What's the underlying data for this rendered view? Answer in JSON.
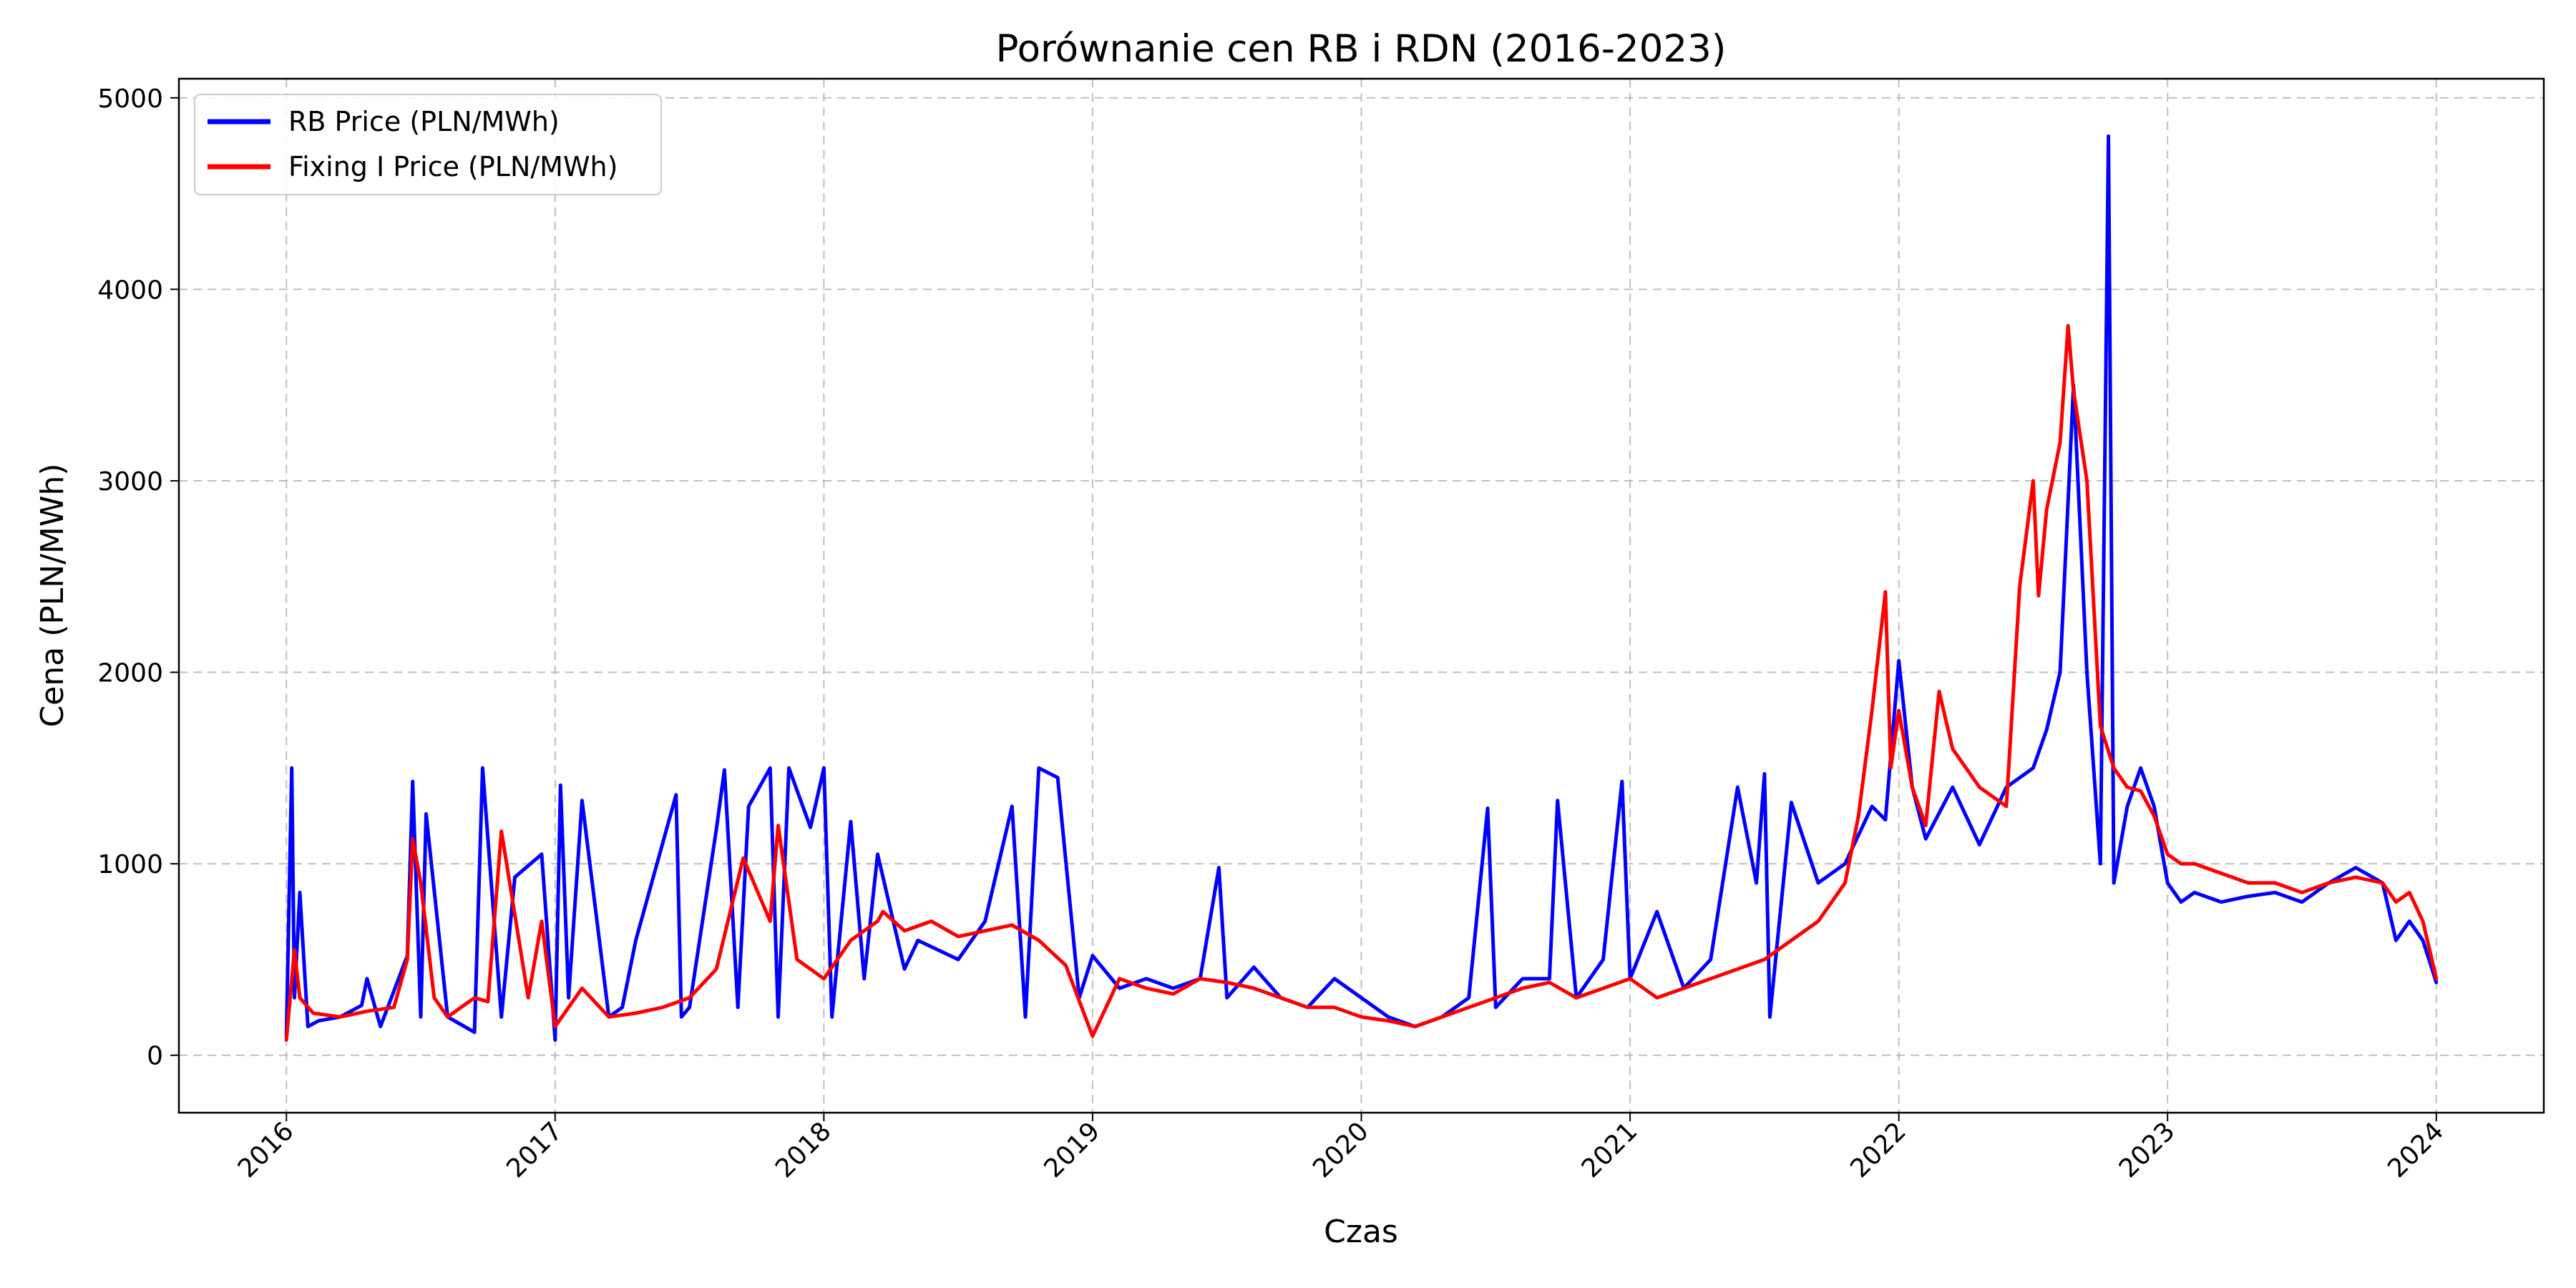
{
  "chart_data": {
    "type": "line",
    "title": "Porównanie cen RB i RDN (2016-2023)",
    "xlabel": "Czas",
    "ylabel": "Cena (PLN/MWh)",
    "xlim": [
      2015.6,
      2024.4
    ],
    "ylim": [
      -300,
      5100
    ],
    "grid": true,
    "legend_position": "top-left",
    "x_ticks": [
      2016,
      2017,
      2018,
      2019,
      2020,
      2021,
      2022,
      2023,
      2024
    ],
    "x_tick_labels": [
      "2016",
      "2017",
      "2018",
      "2019",
      "2020",
      "2021",
      "2022",
      "2023",
      "2024"
    ],
    "y_ticks": [
      0,
      1000,
      2000,
      3000,
      4000,
      5000
    ],
    "y_tick_labels": [
      "0",
      "1000",
      "2000",
      "3000",
      "4000",
      "5000"
    ],
    "series": [
      {
        "name": "RB Price (PLN/MWh)",
        "color": "#0000ff",
        "x": [
          2016.0,
          2016.02,
          2016.03,
          2016.05,
          2016.08,
          2016.12,
          2016.2,
          2016.28,
          2016.3,
          2016.35,
          2016.45,
          2016.47,
          2016.5,
          2016.52,
          2016.6,
          2016.7,
          2016.73,
          2016.8,
          2016.85,
          2016.95,
          2017.0,
          2017.02,
          2017.05,
          2017.1,
          2017.2,
          2017.25,
          2017.3,
          2017.45,
          2017.47,
          2017.5,
          2017.6,
          2017.63,
          2017.68,
          2017.72,
          2017.8,
          2017.83,
          2017.87,
          2017.95,
          2018.0,
          2018.03,
          2018.1,
          2018.15,
          2018.2,
          2018.3,
          2018.35,
          2018.5,
          2018.6,
          2018.7,
          2018.75,
          2018.8,
          2018.87,
          2018.95,
          2019.0,
          2019.1,
          2019.2,
          2019.3,
          2019.4,
          2019.47,
          2019.5,
          2019.6,
          2019.7,
          2019.8,
          2019.9,
          2020.0,
          2020.1,
          2020.2,
          2020.3,
          2020.4,
          2020.47,
          2020.5,
          2020.6,
          2020.7,
          2020.73,
          2020.8,
          2020.9,
          2020.97,
          2021.0,
          2021.1,
          2021.2,
          2021.3,
          2021.4,
          2021.47,
          2021.5,
          2021.52,
          2021.6,
          2021.7,
          2021.8,
          2021.9,
          2021.95,
          2022.0,
          2022.05,
          2022.1,
          2022.2,
          2022.3,
          2022.4,
          2022.5,
          2022.55,
          2022.6,
          2022.65,
          2022.7,
          2022.75,
          2022.78,
          2022.8,
          2022.85,
          2022.9,
          2022.95,
          2023.0,
          2023.05,
          2023.1,
          2023.2,
          2023.3,
          2023.4,
          2023.5,
          2023.6,
          2023.7,
          2023.8,
          2023.85,
          2023.9,
          2023.95,
          2024.0
        ],
        "y": [
          100,
          1500,
          300,
          850,
          150,
          180,
          200,
          260,
          400,
          150,
          520,
          1430,
          200,
          1260,
          200,
          120,
          1500,
          200,
          930,
          1050,
          80,
          1410,
          300,
          1330,
          200,
          250,
          600,
          1360,
          200,
          250,
          1180,
          1490,
          250,
          1300,
          1500,
          200,
          1500,
          1190,
          1500,
          200,
          1220,
          400,
          1050,
          450,
          600,
          500,
          700,
          1300,
          200,
          1500,
          1450,
          300,
          520,
          350,
          400,
          350,
          400,
          980,
          300,
          460,
          300,
          250,
          400,
          300,
          200,
          150,
          200,
          300,
          1290,
          250,
          400,
          400,
          1330,
          300,
          500,
          1430,
          400,
          750,
          350,
          500,
          1400,
          900,
          1470,
          200,
          1320,
          900,
          1000,
          1300,
          1230,
          2060,
          1400,
          1130,
          1400,
          1100,
          1400,
          1500,
          1700,
          2000,
          3500,
          2000,
          1000,
          4800,
          900,
          1300,
          1500,
          1300,
          900,
          800,
          850,
          800,
          830,
          850,
          800,
          900,
          980,
          900,
          600,
          700,
          600,
          380
        ]
      },
      {
        "name": "Fixing I Price (PLN/MWh)",
        "color": "#ff0000",
        "x": [
          2016.0,
          2016.03,
          2016.05,
          2016.1,
          2016.2,
          2016.3,
          2016.4,
          2016.45,
          2016.47,
          2016.5,
          2016.55,
          2016.6,
          2016.7,
          2016.75,
          2016.8,
          2016.9,
          2016.95,
          2017.0,
          2017.1,
          2017.2,
          2017.3,
          2017.4,
          2017.5,
          2017.6,
          2017.7,
          2017.8,
          2017.83,
          2017.9,
          2018.0,
          2018.1,
          2018.2,
          2018.22,
          2018.3,
          2018.4,
          2018.5,
          2018.6,
          2018.7,
          2018.8,
          2018.9,
          2019.0,
          2019.1,
          2019.2,
          2019.3,
          2019.4,
          2019.5,
          2019.6,
          2019.7,
          2019.8,
          2019.9,
          2020.0,
          2020.1,
          2020.2,
          2020.3,
          2020.4,
          2020.5,
          2020.6,
          2020.7,
          2020.8,
          2020.9,
          2021.0,
          2021.1,
          2021.2,
          2021.3,
          2021.4,
          2021.5,
          2021.6,
          2021.7,
          2021.8,
          2021.85,
          2021.9,
          2021.95,
          2021.97,
          2022.0,
          2022.05,
          2022.1,
          2022.15,
          2022.2,
          2022.3,
          2022.4,
          2022.45,
          2022.5,
          2022.52,
          2022.55,
          2022.6,
          2022.63,
          2022.65,
          2022.7,
          2022.75,
          2022.8,
          2022.85,
          2022.9,
          2022.95,
          2023.0,
          2023.05,
          2023.1,
          2023.2,
          2023.3,
          2023.4,
          2023.5,
          2023.6,
          2023.7,
          2023.8,
          2023.85,
          2023.9,
          2023.95,
          2024.0
        ],
        "y": [
          80,
          550,
          300,
          220,
          200,
          230,
          250,
          500,
          1130,
          900,
          300,
          200,
          300,
          280,
          1170,
          300,
          700,
          150,
          350,
          200,
          220,
          250,
          300,
          450,
          1030,
          700,
          1200,
          500,
          400,
          600,
          700,
          750,
          650,
          700,
          620,
          650,
          680,
          600,
          470,
          100,
          400,
          350,
          320,
          400,
          380,
          350,
          300,
          250,
          250,
          200,
          180,
          150,
          200,
          250,
          300,
          350,
          380,
          300,
          350,
          400,
          300,
          350,
          400,
          450,
          500,
          600,
          700,
          900,
          1250,
          1800,
          2420,
          1500,
          1800,
          1400,
          1200,
          1900,
          1600,
          1400,
          1300,
          2450,
          3000,
          2400,
          2850,
          3200,
          3810,
          3470,
          3000,
          1720,
          1500,
          1400,
          1380,
          1250,
          1050,
          1000,
          1000,
          950,
          900,
          900,
          850,
          900,
          930,
          900,
          800,
          850,
          700,
          400
        ]
      }
    ]
  }
}
